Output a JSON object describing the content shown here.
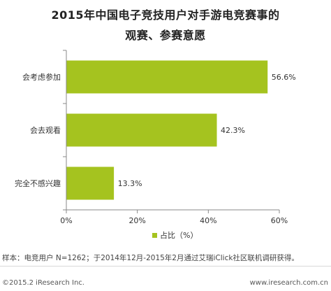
{
  "chart_data": {
    "type": "bar",
    "orientation": "horizontal",
    "title_line1": "2015年中国电子竞技用户对手游电竞赛事的",
    "title_line2": "观赛、参赛意愿",
    "categories": [
      "会考虑参加",
      "会去观看",
      "完全不感兴趣"
    ],
    "values": [
      56.6,
      42.3,
      13.3
    ],
    "value_labels": [
      "56.6%",
      "42.3%",
      "13.3%"
    ],
    "xlim": [
      0,
      60
    ],
    "xticks": [
      "0%",
      "20%",
      "40%",
      "60%"
    ],
    "legend": "占比（%）",
    "legend_position": "bottom",
    "bar_color": "#a5c31f",
    "grid": false
  },
  "note": "样本：电竞用户 N=1262；于2014年12月-2015年2月通过艾瑞iClick社区联机调研获得。",
  "footer": {
    "copyright": "©2015.2 iResearch Inc.",
    "website": "www.iresearch.com.cn"
  }
}
